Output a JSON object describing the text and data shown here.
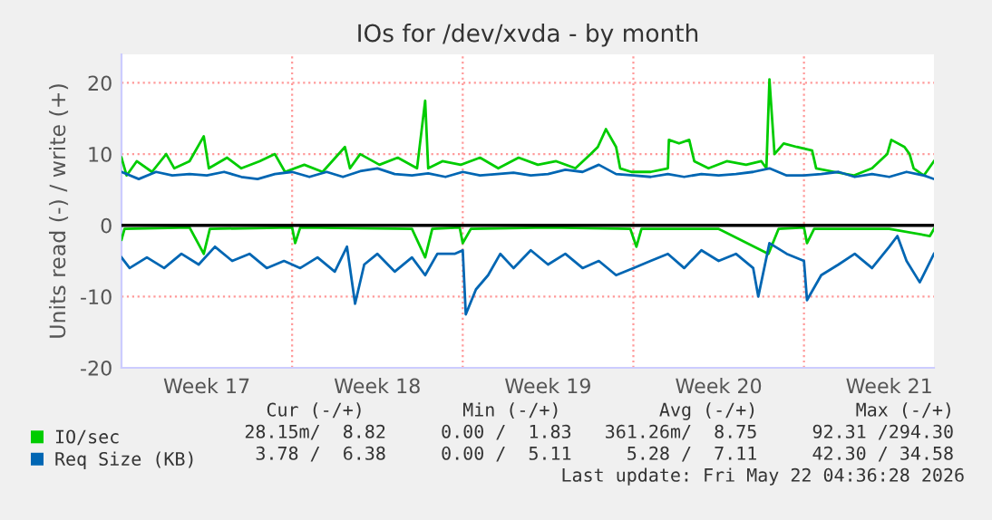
{
  "chart_data": {
    "type": "line",
    "title": "IOs for /dev/xvda - by month",
    "ylabel": "Units read (-) / write (+)",
    "xlim": [
      "2026-04-20T00:00",
      "2026-05-23T08:00"
    ],
    "ylim": [
      -20,
      24
    ],
    "xticks": [
      {
        "value": "2026-04-23T12:00",
        "label": "Week 17"
      },
      {
        "value": "2026-04-27T00:00",
        "label": null
      },
      {
        "value": "2026-04-30T12:00",
        "label": "Week 18"
      },
      {
        "value": "2026-05-04T00:00",
        "label": null
      },
      {
        "value": "2026-05-07T12:00",
        "label": "Week 19"
      },
      {
        "value": "2026-05-11T00:00",
        "label": null
      },
      {
        "value": "2026-05-14T12:00",
        "label": "Week 20"
      },
      {
        "value": "2026-05-18T00:00",
        "label": null
      },
      {
        "value": "2026-05-21T12:00",
        "label": "Week 21"
      }
    ],
    "yticks": [
      -20,
      -10,
      0,
      10,
      20
    ],
    "grid": true,
    "legend": "bottom left",
    "marker": "none",
    "line_style": "solid",
    "ref_lines": [
      {
        "axis": "y",
        "value": 0,
        "label": null,
        "color": "#000000"
      }
    ],
    "series": [
      {
        "name": "IO/sec",
        "color": "#00cc00",
        "x": [
          "2026-04-20T00:00",
          "2026-04-20T05:00",
          "2026-04-20T15:00",
          "2026-04-21T06:00",
          "2026-04-21T20:00",
          "2026-04-22T04:00",
          "2026-04-22T19:00",
          "2026-04-23T09:00",
          "2026-04-23T14:00",
          "2026-04-24T08:00",
          "2026-04-24T22:00",
          "2026-04-25T16:00",
          "2026-04-26T07:00",
          "2026-04-26T17:00",
          "2026-04-27T12:00",
          "2026-04-28T06:00",
          "2026-04-29T04:00",
          "2026-04-29T09:00",
          "2026-04-29T19:00",
          "2026-04-30T14:00",
          "2026-05-01T08:00",
          "2026-05-02T03:00",
          "2026-05-02T11:00",
          "2026-05-02T14:00",
          "2026-05-03T04:00",
          "2026-05-03T22:00",
          "2026-05-04T17:00",
          "2026-05-05T11:00",
          "2026-05-06T07:00",
          "2026-05-07T02:00",
          "2026-05-07T20:00",
          "2026-05-08T15:00",
          "2026-05-09T06:00",
          "2026-05-09T13:00",
          "2026-05-09T21:00",
          "2026-05-10T07:00",
          "2026-05-10T11:00",
          "2026-05-10T22:00",
          "2026-05-11T17:00",
          "2026-05-12T10:00",
          "2026-05-12T11:00",
          "2026-05-12T21:00",
          "2026-05-13T07:00",
          "2026-05-13T12:00",
          "2026-05-14T02:00",
          "2026-05-14T20:00",
          "2026-05-15T15:00",
          "2026-05-16T06:00",
          "2026-05-16T11:00",
          "2026-05-16T14:00",
          "2026-05-16T19:00",
          "2026-05-17T04:00",
          "2026-05-17T17:00",
          "2026-05-18T08:00",
          "2026-05-18T12:00",
          "2026-05-19T06:00",
          "2026-05-20T01:00",
          "2026-05-20T19:00",
          "2026-05-21T10:00",
          "2026-05-21T14:00",
          "2026-05-22T03:00",
          "2026-05-22T08:00",
          "2026-05-22T12:00",
          "2026-05-22T22:00",
          "2026-05-23T08:00"
        ],
        "values": [
          9.5,
          7,
          9,
          7.5,
          10,
          8,
          9,
          12.5,
          8,
          9.5,
          8,
          9,
          10,
          7.5,
          8.5,
          7.5,
          11,
          8,
          10,
          8.5,
          9.5,
          8,
          17.5,
          8,
          9,
          8.5,
          9.5,
          8,
          9.5,
          8.5,
          9,
          8,
          10,
          11,
          13.5,
          11,
          8,
          7.5,
          7.5,
          8,
          12,
          11.5,
          12,
          9,
          8,
          9,
          8.5,
          9,
          8,
          20.5,
          10,
          11.5,
          11,
          10.5,
          8,
          7.5,
          7,
          8,
          10,
          12,
          11,
          10,
          8,
          7,
          9
        ]
      },
      {
        "color": "#00cc00",
        "x": [
          "2026-04-20T00:00",
          "2026-04-20T03:00",
          "2026-04-22T19:00",
          "2026-04-23T09:00",
          "2026-04-23T15:00",
          "2026-04-27T00:00",
          "2026-04-27T03:00",
          "2026-04-27T08:00",
          "2026-05-01T22:00",
          "2026-05-02T11:00",
          "2026-05-02T18:00",
          "2026-05-03T21:00",
          "2026-05-04T00:00",
          "2026-05-04T08:00",
          "2026-05-07T12:00",
          "2026-05-10T21:00",
          "2026-05-11T03:00",
          "2026-05-11T08:00",
          "2026-05-14T12:00",
          "2026-05-16T13:00",
          "2026-05-16T23:00",
          "2026-05-18T00:00",
          "2026-05-18T03:00",
          "2026-05-18T10:00",
          "2026-05-21T12:00",
          "2026-05-23T04:00",
          "2026-05-23T08:00"
        ],
        "values": [
          -2,
          -0.5,
          -0.3,
          -4,
          -0.5,
          -0.3,
          -2.5,
          -0.3,
          -0.5,
          -4.5,
          -0.5,
          -0.3,
          -2.5,
          -0.5,
          -0.3,
          -0.5,
          -3,
          -0.5,
          -0.5,
          -4,
          -0.5,
          -0.3,
          -2.5,
          -0.5,
          -0.5,
          -1.5,
          -0.5
        ]
      },
      {
        "name": "Req Size (KB)",
        "color": "#0066b3",
        "x": [
          "2026-04-20T00:00",
          "2026-04-20T17:00",
          "2026-04-21T10:00",
          "2026-04-22T02:00",
          "2026-04-22T19:00",
          "2026-04-23T12:00",
          "2026-04-24T05:00",
          "2026-04-24T22:00",
          "2026-04-25T14:00",
          "2026-04-26T07:00",
          "2026-04-27T00:00",
          "2026-04-27T17:00",
          "2026-04-28T10:00",
          "2026-04-29T02:00",
          "2026-04-29T19:00",
          "2026-04-30T12:00",
          "2026-05-01T05:00",
          "2026-05-01T22:00",
          "2026-05-02T14:00",
          "2026-05-03T07:00",
          "2026-05-04T00:00",
          "2026-05-04T17:00",
          "2026-05-05T10:00",
          "2026-05-06T02:00",
          "2026-05-06T19:00",
          "2026-05-07T12:00",
          "2026-05-08T05:00",
          "2026-05-08T22:00",
          "2026-05-09T14:00",
          "2026-05-10T07:00",
          "2026-05-11T00:00",
          "2026-05-11T17:00",
          "2026-05-12T10:00",
          "2026-05-13T02:00",
          "2026-05-13T19:00",
          "2026-05-14T12:00",
          "2026-05-15T05:00",
          "2026-05-15T22:00",
          "2026-05-16T14:00",
          "2026-05-17T07:00",
          "2026-05-18T00:00",
          "2026-05-18T17:00",
          "2026-05-19T10:00",
          "2026-05-20T02:00",
          "2026-05-20T19:00",
          "2026-05-21T12:00",
          "2026-05-22T05:00",
          "2026-05-22T22:00",
          "2026-05-23T08:00"
        ],
        "values": [
          7.5,
          6.5,
          7.5,
          7,
          7.2,
          7,
          7.5,
          6.8,
          6.5,
          7.2,
          7.5,
          6.8,
          7.5,
          6.8,
          7.6,
          8,
          7.2,
          7,
          7.3,
          6.8,
          7.5,
          7,
          7.2,
          7.4,
          7,
          7.2,
          7.8,
          7.5,
          8.5,
          7.2,
          7,
          6.8,
          7.2,
          6.8,
          7.2,
          7,
          7.2,
          7.5,
          8,
          7,
          7,
          7.2,
          7.5,
          6.8,
          7.2,
          6.8,
          7.5,
          7,
          6.5
        ]
      },
      {
        "color": "#0066b3",
        "x": [
          "2026-04-20T00:00",
          "2026-04-20T08:00",
          "2026-04-21T01:00",
          "2026-04-21T18:00",
          "2026-04-22T11:00",
          "2026-04-23T04:00",
          "2026-04-23T20:00",
          "2026-04-24T13:00",
          "2026-04-25T06:00",
          "2026-04-25T23:00",
          "2026-04-26T16:00",
          "2026-04-27T08:00",
          "2026-04-28T01:00",
          "2026-04-28T18:00",
          "2026-04-29T06:00",
          "2026-04-29T14:00",
          "2026-04-29T23:00",
          "2026-04-30T12:00",
          "2026-05-01T05:00",
          "2026-05-01T22:00",
          "2026-05-02T11:00",
          "2026-05-02T23:00",
          "2026-05-03T16:00",
          "2026-05-04T00:00",
          "2026-05-04T03:00",
          "2026-05-04T13:00",
          "2026-05-05T01:00",
          "2026-05-05T13:00",
          "2026-05-06T02:00",
          "2026-05-06T19:00",
          "2026-05-07T12:00",
          "2026-05-08T05:00",
          "2026-05-08T22:00",
          "2026-05-09T14:00",
          "2026-05-10T07:00",
          "2026-05-11T00:00",
          "2026-05-11T17:00",
          "2026-05-12T10:00",
          "2026-05-13T02:00",
          "2026-05-13T19:00",
          "2026-05-14T12:00",
          "2026-05-15T05:00",
          "2026-05-15T22:00",
          "2026-05-16T03:00",
          "2026-05-16T14:00",
          "2026-05-17T07:00",
          "2026-05-18T00:00",
          "2026-05-18T03:00",
          "2026-05-18T17:00",
          "2026-05-19T10:00",
          "2026-05-20T02:00",
          "2026-05-20T19:00",
          "2026-05-21T12:00",
          "2026-05-21T20:00",
          "2026-05-22T05:00",
          "2026-05-22T18:00",
          "2026-05-23T08:00"
        ],
        "values": [
          -4.5,
          -6,
          -4.5,
          -6,
          -4,
          -5.5,
          -3,
          -5,
          -4,
          -6,
          -5,
          -6,
          -4.5,
          -6.5,
          -3,
          -11,
          -5.5,
          -4,
          -6.5,
          -4.5,
          -7,
          -4,
          -4,
          -3.5,
          -12.5,
          -9,
          -7,
          -4,
          -6,
          -3.5,
          -5.5,
          -4,
          -6,
          -5,
          -7,
          -6,
          -5,
          -4,
          -6,
          -3.5,
          -5,
          -4,
          -6,
          -10,
          -2.5,
          -4,
          -5,
          -10.5,
          -7,
          -5.5,
          -4,
          -6,
          -3,
          -1.5,
          -5,
          -8,
          -4
        ]
      }
    ],
    "annotations": [
      "Cur (-/+)         Min (-/+)         Avg (-/+)         Max (-/+)",
      "28.15m/  8.82     0.00 /  1.83   361.26m/  8.75     92.31 /294.30",
      " 3.78 /  6.38     0.00 /  5.11     5.28 /  7.11     42.30 / 34.58",
      "Last update: Fri May 22 04:36:28 2026"
    ]
  }
}
